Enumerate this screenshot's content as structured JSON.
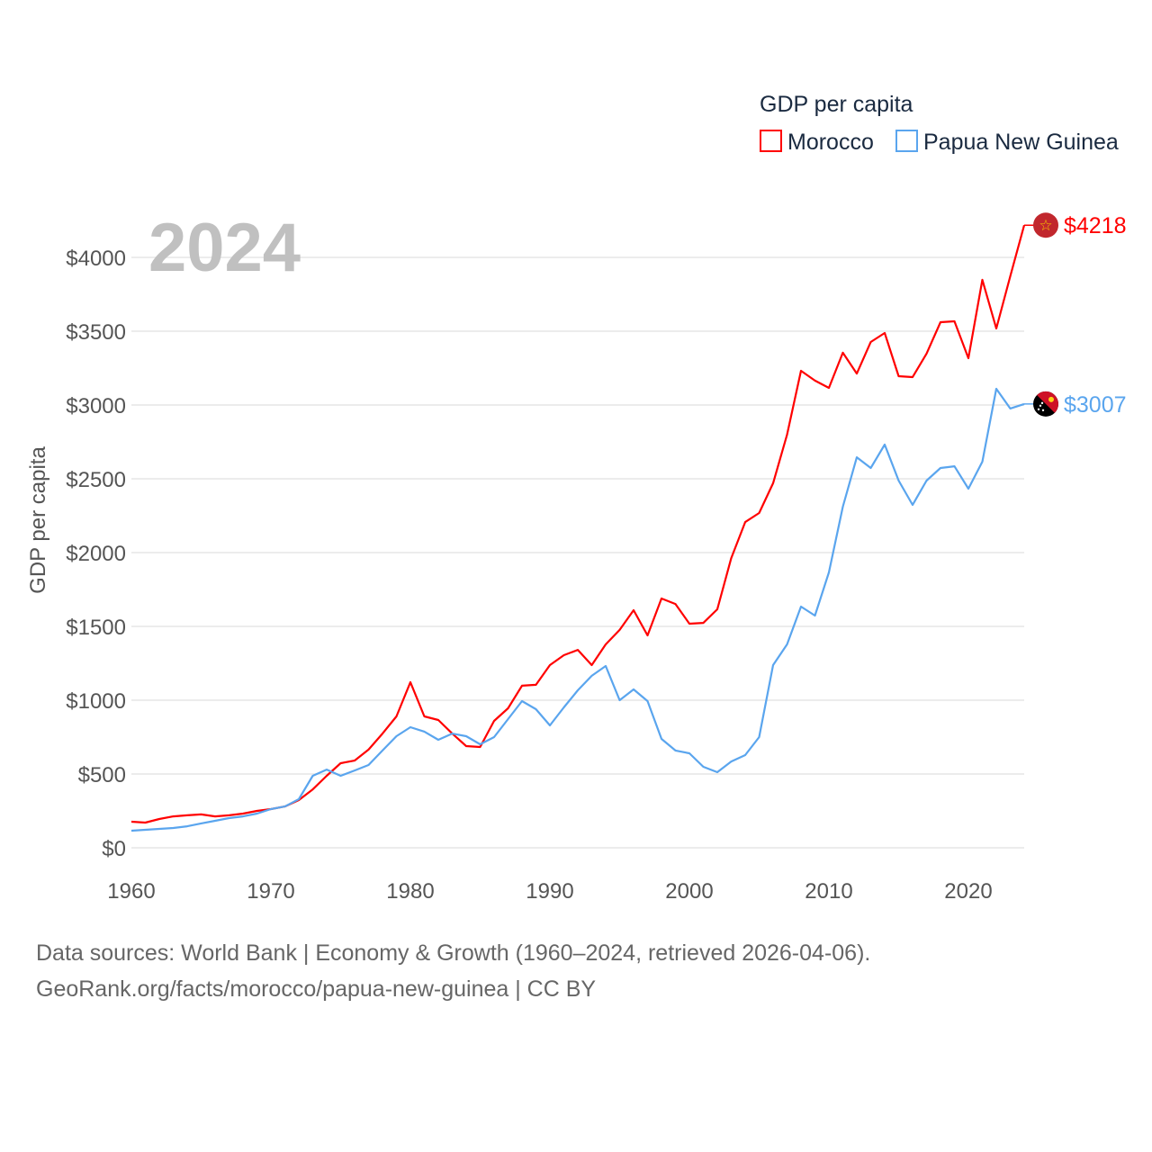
{
  "chart_data": {
    "type": "line",
    "title": "2024",
    "legend_title": "GDP per capita",
    "legend_position": "top-right",
    "ylabel": "GDP per capita",
    "xlabel": "",
    "xlim": [
      1960,
      2024
    ],
    "ylim": [
      0,
      4300
    ],
    "x_ticks": [
      1960,
      1970,
      1980,
      1990,
      2000,
      2010,
      2020
    ],
    "y_ticks": [
      0,
      500,
      1000,
      1500,
      2000,
      2500,
      3000,
      3500,
      4000
    ],
    "y_tick_labels": [
      "$0",
      "$500",
      "$1000",
      "$1500",
      "$2000",
      "$2500",
      "$3000",
      "$3500",
      "$4000"
    ],
    "grid": true,
    "x": [
      1960,
      1961,
      1962,
      1963,
      1964,
      1965,
      1966,
      1967,
      1968,
      1969,
      1970,
      1971,
      1972,
      1973,
      1974,
      1975,
      1976,
      1977,
      1978,
      1979,
      1980,
      1981,
      1982,
      1983,
      1984,
      1985,
      1986,
      1987,
      1988,
      1989,
      1990,
      1991,
      1992,
      1993,
      1994,
      1995,
      1996,
      1997,
      1998,
      1999,
      2000,
      2001,
      2002,
      2003,
      2004,
      2005,
      2006,
      2007,
      2008,
      2009,
      2010,
      2011,
      2012,
      2013,
      2014,
      2015,
      2016,
      2017,
      2018,
      2019,
      2020,
      2021,
      2022,
      2023,
      2024
    ],
    "series": [
      {
        "name": "Morocco",
        "color": "#ff0000",
        "end_label": "$4218",
        "values": [
          177,
          171,
          195,
          213,
          220,
          226,
          213,
          220,
          232,
          250,
          262,
          280,
          323,
          396,
          488,
          573,
          591,
          665,
          774,
          890,
          1122,
          890,
          866,
          774,
          689,
          683,
          860,
          945,
          1098,
          1104,
          1238,
          1305,
          1341,
          1238,
          1378,
          1476,
          1610,
          1439,
          1689,
          1652,
          1518,
          1524,
          1616,
          1963,
          2207,
          2268,
          2470,
          2799,
          3232,
          3165,
          3116,
          3354,
          3213,
          3427,
          3488,
          3195,
          3189,
          3348,
          3561,
          3567,
          3317,
          3848,
          3518,
          3872,
          4218
        ]
      },
      {
        "name": "Papua New Guinea",
        "color": "#5aa5ee",
        "end_label": "$3007",
        "values": [
          116,
          122,
          128,
          134,
          146,
          165,
          183,
          201,
          213,
          232,
          262,
          280,
          329,
          488,
          530,
          488,
          524,
          561,
          659,
          756,
          817,
          787,
          732,
          774,
          756,
          701,
          750,
          872,
          994,
          939,
          829,
          951,
          1067,
          1165,
          1232,
          1000,
          1073,
          994,
          738,
          659,
          640,
          549,
          512,
          585,
          628,
          750,
          1238,
          1378,
          1634,
          1573,
          1866,
          2311,
          2646,
          2573,
          2732,
          2488,
          2323,
          2488,
          2573,
          2585,
          2433,
          2616,
          3110,
          2976,
          3007
        ]
      }
    ]
  },
  "footer": {
    "line1": "Data sources: World Bank | Economy & Growth (1960–2024, retrieved 2026-04-06).",
    "line2": "GeoRank.org/facts/morocco/papua-new-guinea | CC BY"
  }
}
